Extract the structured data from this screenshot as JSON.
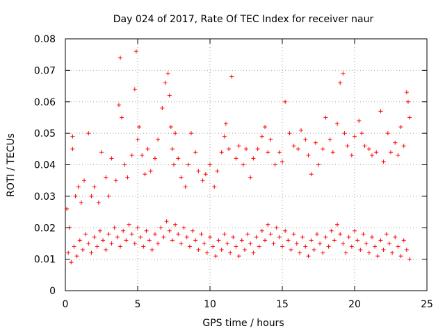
{
  "chart_data": {
    "type": "scatter",
    "title": "Day 024 of 2017, Rate Of TEC Index for receiver naur",
    "xlabel": "GPS time / hours",
    "ylabel": "ROTI / TECUs",
    "xlim": [
      0,
      25
    ],
    "ylim": [
      0,
      0.08
    ],
    "x_ticks": [
      0,
      5,
      10,
      15,
      20,
      25
    ],
    "x_tick_labels": [
      "0",
      "5",
      "10",
      "15",
      "20",
      "25"
    ],
    "y_ticks": [
      0,
      0.01,
      0.02,
      0.03,
      0.04,
      0.05,
      0.06,
      0.07,
      0.08
    ],
    "y_tick_labels": [
      "0",
      "0.01",
      "0.02",
      "0.03",
      "0.04",
      "0.05",
      "0.06",
      "0.07",
      "0.08"
    ],
    "grid": true,
    "marker": "plus",
    "marker_color": "#ff0000",
    "series": [
      {
        "x": [
          0.1,
          0.3,
          0.5,
          0.5,
          0.7,
          0.9,
          1.1,
          1.3,
          1.6,
          1.8,
          2.0,
          2.3,
          2.5,
          2.8,
          3.0,
          3.2,
          3.5,
          3.7,
          3.8,
          3.9,
          4.1,
          4.3,
          4.6,
          4.8,
          4.9,
          5.0,
          5.1,
          5.3,
          5.5,
          5.7,
          5.9,
          6.2,
          6.4,
          6.7,
          6.9,
          7.1,
          7.2,
          7.3,
          7.4,
          7.5,
          7.6,
          7.8,
          8.0,
          8.3,
          8.5,
          8.7,
          9.0,
          9.2,
          9.5,
          9.7,
          10.0,
          10.3,
          10.5,
          10.8,
          11.0,
          11.1,
          11.3,
          11.5,
          11.8,
          12.0,
          12.3,
          12.5,
          12.8,
          13.0,
          13.3,
          13.6,
          13.8,
          14.0,
          14.2,
          14.5,
          14.8,
          15.0,
          15.2,
          15.5,
          15.8,
          16.1,
          16.3,
          16.6,
          16.8,
          17.0,
          17.3,
          17.5,
          17.8,
          18.0,
          18.3,
          18.5,
          18.8,
          19.0,
          19.2,
          19.3,
          19.5,
          19.8,
          20.0,
          20.3,
          20.5,
          20.7,
          21.0,
          21.2,
          21.5,
          21.8,
          22.0,
          22.3,
          22.5,
          22.8,
          23.0,
          23.2,
          23.4,
          23.6,
          23.7,
          23.8
        ],
        "y": [
          0.026,
          0.02,
          0.049,
          0.045,
          0.03,
          0.033,
          0.028,
          0.035,
          0.05,
          0.03,
          0.033,
          0.028,
          0.044,
          0.036,
          0.03,
          0.042,
          0.035,
          0.059,
          0.074,
          0.055,
          0.04,
          0.036,
          0.043,
          0.064,
          0.076,
          0.048,
          0.052,
          0.043,
          0.037,
          0.045,
          0.038,
          0.042,
          0.048,
          0.058,
          0.066,
          0.069,
          0.062,
          0.052,
          0.045,
          0.04,
          0.05,
          0.042,
          0.036,
          0.033,
          0.04,
          0.05,
          0.044,
          0.038,
          0.035,
          0.037,
          0.04,
          0.033,
          0.038,
          0.044,
          0.049,
          0.053,
          0.045,
          0.068,
          0.042,
          0.046,
          0.04,
          0.045,
          0.036,
          0.042,
          0.045,
          0.049,
          0.052,
          0.044,
          0.048,
          0.04,
          0.044,
          0.041,
          0.06,
          0.05,
          0.046,
          0.045,
          0.051,
          0.048,
          0.043,
          0.037,
          0.047,
          0.04,
          0.045,
          0.055,
          0.048,
          0.044,
          0.053,
          0.066,
          0.069,
          0.05,
          0.046,
          0.043,
          0.049,
          0.054,
          0.05,
          0.046,
          0.045,
          0.043,
          0.044,
          0.057,
          0.041,
          0.05,
          0.044,
          0.047,
          0.043,
          0.052,
          0.046,
          0.063,
          0.06,
          0.055
        ]
      },
      {
        "x": [
          0.2,
          0.4,
          0.6,
          0.8,
          1.0,
          1.2,
          1.4,
          1.6,
          1.8,
          2.0,
          2.2,
          2.4,
          2.6,
          2.8,
          3.0,
          3.2,
          3.4,
          3.6,
          3.8,
          4.0,
          4.2,
          4.4,
          4.6,
          4.8,
          5.0,
          5.2,
          5.4,
          5.6,
          5.8,
          6.0,
          6.2,
          6.4,
          6.6,
          6.8,
          7.0,
          7.2,
          7.4,
          7.6,
          7.8,
          8.0,
          8.2,
          8.4,
          8.6,
          8.8,
          9.0,
          9.2,
          9.4,
          9.6,
          9.8,
          10.0,
          10.2,
          10.4,
          10.6,
          10.8,
          11.0,
          11.2,
          11.4,
          11.6,
          11.8,
          12.0,
          12.2,
          12.4,
          12.6,
          12.8,
          13.0,
          13.2,
          13.4,
          13.6,
          13.8,
          14.0,
          14.2,
          14.4,
          14.6,
          14.8,
          15.0,
          15.2,
          15.4,
          15.6,
          15.8,
          16.0,
          16.2,
          16.4,
          16.6,
          16.8,
          17.0,
          17.2,
          17.4,
          17.6,
          17.8,
          18.0,
          18.2,
          18.4,
          18.6,
          18.8,
          19.0,
          19.2,
          19.4,
          19.6,
          19.8,
          20.0,
          20.2,
          20.4,
          20.6,
          20.8,
          21.0,
          21.2,
          21.4,
          21.6,
          21.8,
          22.0,
          22.2,
          22.4,
          22.6,
          22.8,
          23.0,
          23.2,
          23.4,
          23.6,
          23.8
        ],
        "y": [
          0.012,
          0.009,
          0.014,
          0.011,
          0.016,
          0.013,
          0.018,
          0.015,
          0.012,
          0.017,
          0.014,
          0.019,
          0.016,
          0.013,
          0.018,
          0.015,
          0.02,
          0.017,
          0.014,
          0.019,
          0.016,
          0.021,
          0.018,
          0.015,
          0.02,
          0.017,
          0.014,
          0.019,
          0.016,
          0.013,
          0.018,
          0.015,
          0.02,
          0.017,
          0.022,
          0.019,
          0.016,
          0.021,
          0.018,
          0.015,
          0.02,
          0.017,
          0.014,
          0.019,
          0.016,
          0.013,
          0.018,
          0.015,
          0.012,
          0.017,
          0.014,
          0.011,
          0.016,
          0.013,
          0.018,
          0.015,
          0.012,
          0.017,
          0.014,
          0.011,
          0.016,
          0.013,
          0.018,
          0.015,
          0.012,
          0.017,
          0.014,
          0.019,
          0.016,
          0.021,
          0.018,
          0.015,
          0.02,
          0.017,
          0.014,
          0.019,
          0.016,
          0.013,
          0.018,
          0.015,
          0.012,
          0.017,
          0.014,
          0.011,
          0.016,
          0.013,
          0.018,
          0.015,
          0.012,
          0.017,
          0.014,
          0.019,
          0.016,
          0.021,
          0.018,
          0.015,
          0.012,
          0.017,
          0.014,
          0.019,
          0.016,
          0.013,
          0.018,
          0.015,
          0.012,
          0.017,
          0.014,
          0.011,
          0.016,
          0.013,
          0.018,
          0.015,
          0.012,
          0.017,
          0.014,
          0.011,
          0.016,
          0.013,
          0.01
        ]
      }
    ]
  }
}
